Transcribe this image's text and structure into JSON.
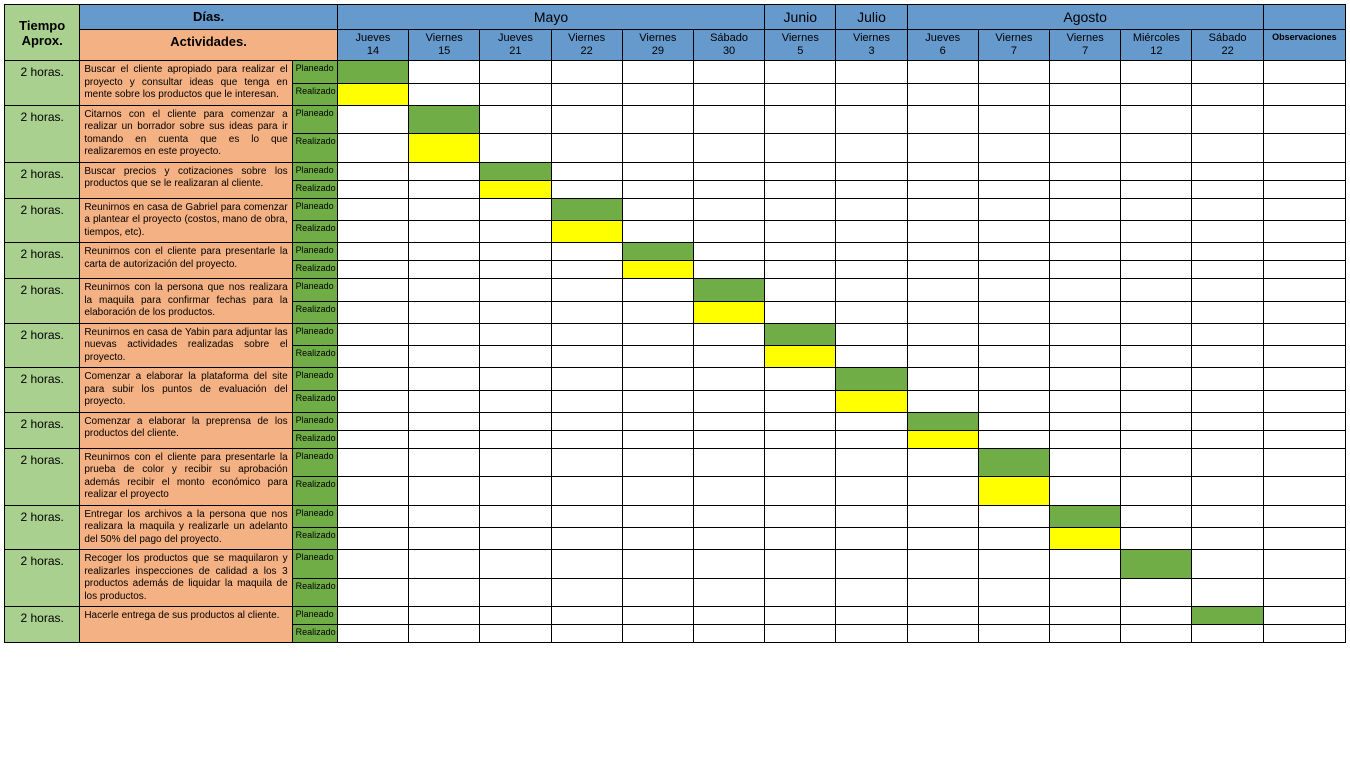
{
  "headers": {
    "tiempo": "Tiempo Aprox.",
    "dias": "Días.",
    "actividades": "Actividades.",
    "observaciones": "Observaciones"
  },
  "months": {
    "mayo": "Mayo",
    "junio": "Junio",
    "julio": "Julio",
    "agosto": "Agosto"
  },
  "days": [
    {
      "name": "Jueves",
      "num": "14"
    },
    {
      "name": "Viernes",
      "num": "15"
    },
    {
      "name": "Jueves",
      "num": "21"
    },
    {
      "name": "Viernes",
      "num": "22"
    },
    {
      "name": "Viernes",
      "num": "29"
    },
    {
      "name": "Sábado",
      "num": "30"
    },
    {
      "name": "Viernes",
      "num": "5"
    },
    {
      "name": "Viernes",
      "num": "3"
    },
    {
      "name": "Jueves",
      "num": "6"
    },
    {
      "name": "Viernes",
      "num": "7"
    },
    {
      "name": "Viernes",
      "num": "7"
    },
    {
      "name": "Miércoles",
      "num": "12"
    },
    {
      "name": "Sábado",
      "num": "22"
    }
  ],
  "status": {
    "planeado": "Planeado",
    "realizado": "Realizado"
  },
  "rows": [
    {
      "tiempo": "2 horas.",
      "activity": "Buscar el cliente apropiado para realizar el proyecto y consultar ideas que tenga en mente sobre los productos que le interesan.",
      "col": 0,
      "realizado": true
    },
    {
      "tiempo": "2 horas.",
      "activity": "Citarnos con el cliente para comenzar a realizar un borrador sobre sus ideas para ir tomando en cuenta que es lo que realizaremos en este proyecto.",
      "col": 1,
      "realizado": true
    },
    {
      "tiempo": "2 horas.",
      "activity": "Buscar precios y cotizaciones sobre los productos que se le realizaran al cliente.",
      "col": 2,
      "realizado": true
    },
    {
      "tiempo": "2 horas.",
      "activity": "Reunirnos en casa de Gabriel para comenzar a plantear el proyecto (costos, mano de obra, tiempos, etc).",
      "col": 3,
      "realizado": true
    },
    {
      "tiempo": "2 horas.",
      "activity": "Reunirnos con el cliente para presentarle la carta de autorización del proyecto.",
      "col": 4,
      "realizado": true
    },
    {
      "tiempo": "2 horas.",
      "activity": "Reunirnos con la persona que nos realizara la maquila para confirmar fechas para la elaboración de los productos.",
      "col": 5,
      "realizado": true
    },
    {
      "tiempo": "2 horas.",
      "activity": "Reunirnos en casa de Yabin para adjuntar las nuevas actividades realizadas sobre el proyecto.",
      "col": 6,
      "realizado": true
    },
    {
      "tiempo": "2 horas.",
      "activity": "Comenzar a elaborar la plataforma del site para subir los puntos de evaluación del proyecto.",
      "col": 7,
      "realizado": true
    },
    {
      "tiempo": "2 horas.",
      "activity": "Comenzar a elaborar la preprensa de los productos del cliente.",
      "col": 8,
      "realizado": true
    },
    {
      "tiempo": "2 horas.",
      "activity": "Reunirnos con el cliente para presentarle la prueba de color y recibir su aprobación además recibir el monto económico para realizar el proyecto",
      "col": 9,
      "realizado": true
    },
    {
      "tiempo": "2 horas.",
      "activity": "Entregar los archivos a la persona que nos realizara la maquila y realizarle un adelanto del 50% del pago del proyecto.",
      "col": 10,
      "realizado": true
    },
    {
      "tiempo": "2 horas.",
      "activity": "Recoger los productos que se maquilaron y realizarles inspecciones de calidad a los 3 productos además de liquidar la maquila de los productos.",
      "col": 11,
      "realizado": false
    },
    {
      "tiempo": "2 horas.",
      "activity": "Hacerle entrega de sus productos al cliente.",
      "col": 12,
      "realizado": false
    }
  ],
  "colors": {
    "header_blue": "#6699cc",
    "header_green": "#a9d08e",
    "activity_bg": "#f4b183",
    "planeado_fill": "#70ad47",
    "realizado_fill": "#ffff00"
  }
}
